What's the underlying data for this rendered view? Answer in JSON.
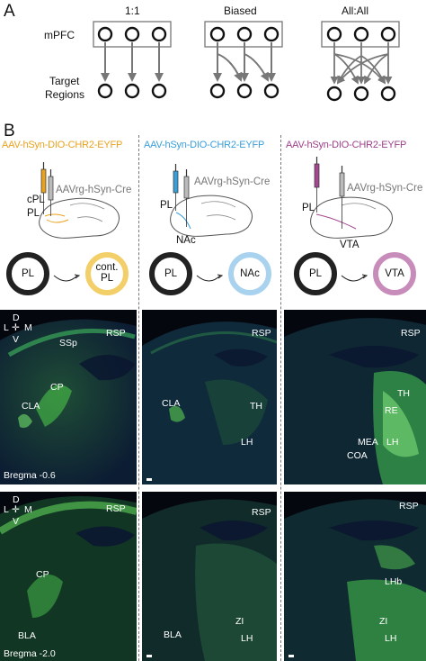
{
  "panel_a": {
    "letter": "A",
    "row_label_top": "mPFC",
    "row_label_bottom_1": "Target",
    "row_label_bottom_2": "Regions",
    "schemes": [
      "1:1",
      "Biased",
      "All:All"
    ]
  },
  "panel_b": {
    "letter": "B",
    "columns": [
      {
        "title": "AAV-hSyn-DIO-CHR2-EYFP",
        "title_color": "#e8a21e",
        "retro": "AAVrg-hSyn-Cre",
        "site_labels": [
          "cPL",
          "PL"
        ],
        "syringe_color": "#e8a21e",
        "source": "PL",
        "target": "cont.\nPL",
        "target_color": "#f3cf6a",
        "micro_top": {
          "labels": [
            "SSp",
            "RSP",
            "CP",
            "CLA"
          ],
          "bregma": "Bregma -0.6"
        },
        "micro_bottom": {
          "labels": [
            "RSP",
            "CP",
            "BLA"
          ],
          "bregma": "Bregma -2.0"
        }
      },
      {
        "title": "AAV-hSyn-DIO-CHR2-EYFP",
        "title_color": "#3a9ed8",
        "retro": "AAVrg-hSyn-Cre",
        "site_labels": [
          "PL",
          "NAc"
        ],
        "syringe_color": "#3a9ed8",
        "source": "PL",
        "target": "NAc",
        "target_color": "#a9d2ef",
        "micro_top": {
          "labels": [
            "RSP",
            "CLA",
            "TH",
            "LH"
          ]
        },
        "micro_bottom": {
          "labels": [
            "RSP",
            "BLA",
            "ZI",
            "LH"
          ]
        }
      },
      {
        "title": "AAV-hSyn-DIO-CHR2-EYFP",
        "title_color": "#9c3f8a",
        "retro": "AAVrg-hSyn-Cre",
        "site_labels": [
          "PL",
          "VTA"
        ],
        "syringe_color": "#a3478f",
        "source": "PL",
        "target": "VTA",
        "target_color": "#c88cbb",
        "micro_top": {
          "labels": [
            "RSP",
            "TH",
            "RE",
            "MEA",
            "LH",
            "COA"
          ]
        },
        "micro_bottom": {
          "labels": [
            "RSP",
            "LHb",
            "ZI",
            "LH"
          ]
        }
      }
    ],
    "orientation": {
      "d": "D",
      "l": "L",
      "m": "M",
      "v": "V"
    }
  }
}
